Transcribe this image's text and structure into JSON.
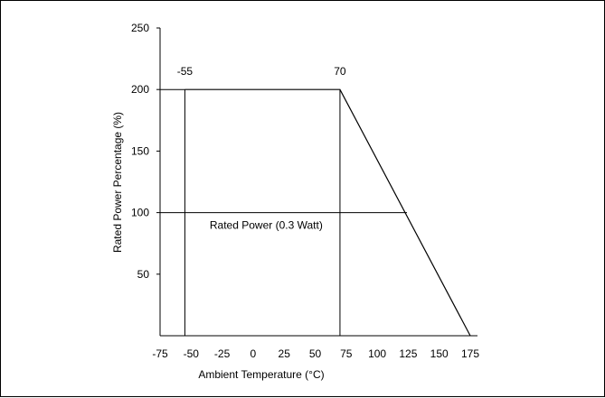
{
  "chart_data": {
    "type": "line",
    "title": "",
    "xlabel": "Ambient Temperature (°C)",
    "ylabel": "Rated Power Percentage (%)",
    "xlim": [
      -75,
      175
    ],
    "ylim": [
      0,
      250
    ],
    "xticks": [
      "-75",
      "-50",
      "-25",
      "0",
      "25",
      "50",
      "75",
      "100",
      "125",
      "150",
      "175"
    ],
    "xtick_values": [
      -75,
      -50,
      -25,
      0,
      25,
      50,
      75,
      100,
      125,
      150,
      175
    ],
    "yticks": [
      "50",
      "100",
      "150",
      "200",
      "250"
    ],
    "ytick_values": [
      50,
      100,
      150,
      200,
      250
    ],
    "grid": false,
    "series": [
      {
        "x": [
          -55,
          70,
          175
        ],
        "y": [
          200,
          200,
          0
        ]
      }
    ],
    "reference_lines": {
      "horizontal": [
        {
          "y": 100,
          "x_from": -75,
          "x_to": 124
        },
        {
          "y": 200,
          "x_from": -75,
          "x_to": -55
        }
      ],
      "vertical": [
        {
          "x": -55,
          "y_from": 0,
          "y_to": 200
        },
        {
          "x": 70,
          "y_from": 0,
          "y_to": 200
        }
      ]
    },
    "annotations": [
      {
        "text": "-55",
        "x": -55,
        "y": 200
      },
      {
        "text": "70",
        "x": 70,
        "y": 200
      },
      {
        "text": "Rated Power (0.3 Watt)",
        "x": -35,
        "y": 100
      }
    ],
    "line_color": "#000000"
  }
}
